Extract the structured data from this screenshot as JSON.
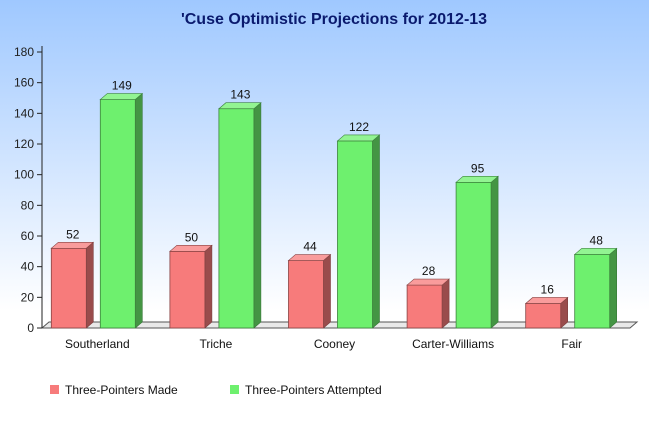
{
  "chart_data": {
    "type": "bar",
    "title": "'Cuse Optimistic Projections for 2012-13",
    "xlabel": "",
    "ylabel": "",
    "categories": [
      "Southerland",
      "Triche",
      "Cooney",
      "Carter-Williams",
      "Fair"
    ],
    "series": [
      {
        "name": "Three-Pointers Made",
        "values": [
          52,
          50,
          44,
          28,
          16
        ],
        "color": "#f77b7b"
      },
      {
        "name": "Three-Pointers Attempted",
        "values": [
          149,
          143,
          122,
          95,
          48
        ],
        "color": "#6ef06e"
      }
    ],
    "ylim": [
      0,
      180
    ],
    "yticks": [
      0,
      20,
      40,
      60,
      80,
      100,
      120,
      140,
      160,
      180
    ],
    "grid": false,
    "legend_position": "bottom-left",
    "data_labels": true,
    "style": "3d",
    "colors": {
      "title": "#0a1a6e",
      "background_top": "#9fc8ff",
      "background_bottom": "#ffffff"
    }
  }
}
